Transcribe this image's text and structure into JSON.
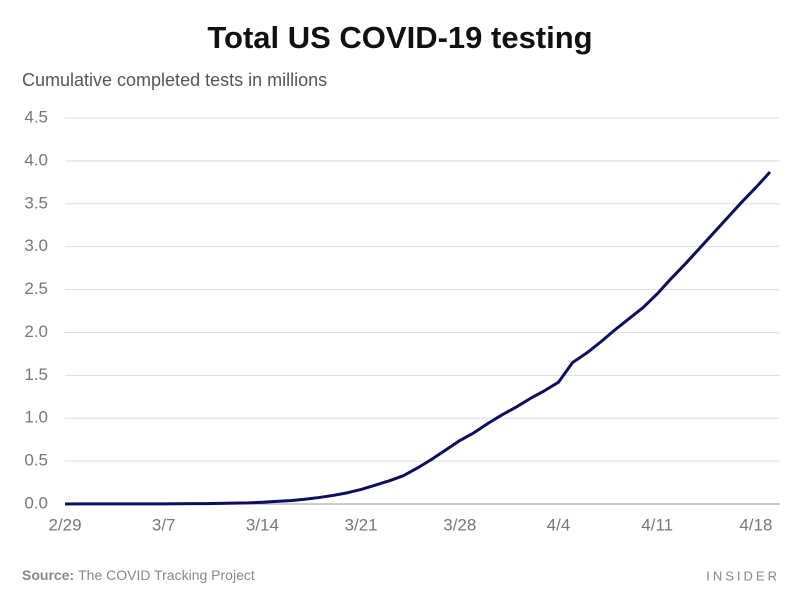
{
  "chart_data": {
    "type": "line",
    "title": "Total US COVID-19 testing",
    "subtitle": "Cumulative completed tests in millions",
    "categories": [
      "2/29",
      null,
      null,
      null,
      null,
      null,
      null,
      "3/7",
      null,
      null,
      null,
      null,
      null,
      null,
      "3/14",
      null,
      null,
      null,
      null,
      null,
      null,
      "3/21",
      null,
      null,
      null,
      null,
      null,
      null,
      "3/28",
      null,
      null,
      null,
      null,
      null,
      null,
      "4/4",
      null,
      null,
      null,
      null,
      null,
      null,
      "4/11",
      null,
      null,
      null,
      null,
      null,
      null,
      "4/18",
      null
    ],
    "series": [
      {
        "name": "Cumulative completed tests",
        "color": "#0b0f5e",
        "values": [
          0,
          0.001,
          0.001,
          0.001,
          0.001,
          0.001,
          0.002,
          0.002,
          0.003,
          0.004,
          0.005,
          0.007,
          0.01,
          0.013,
          0.02,
          0.03,
          0.04,
          0.055,
          0.075,
          0.1,
          0.13,
          0.17,
          0.22,
          0.27,
          0.33,
          0.42,
          0.52,
          0.63,
          0.74,
          0.83,
          0.94,
          1.04,
          1.13,
          1.23,
          1.32,
          1.42,
          1.65,
          1.76,
          1.89,
          2.03,
          2.16,
          2.29,
          2.45,
          2.63,
          2.8,
          2.98,
          3.16,
          3.34,
          3.52,
          3.69,
          3.87
        ]
      }
    ],
    "ylim": [
      0,
      4.5
    ],
    "yticks": [
      {
        "value": 0,
        "label": "0.0"
      },
      0.5,
      {
        "value": 1,
        "label": "1.0"
      },
      1.5,
      {
        "value": 2,
        "label": "2.0"
      },
      2.5,
      {
        "value": 3,
        "label": "3.0"
      },
      3.5,
      {
        "value": 4,
        "label": "4.0"
      },
      4.5
    ],
    "grid": true,
    "source_label": "Source:",
    "source": "The COVID Tracking Project",
    "brand": "INSIDER"
  }
}
